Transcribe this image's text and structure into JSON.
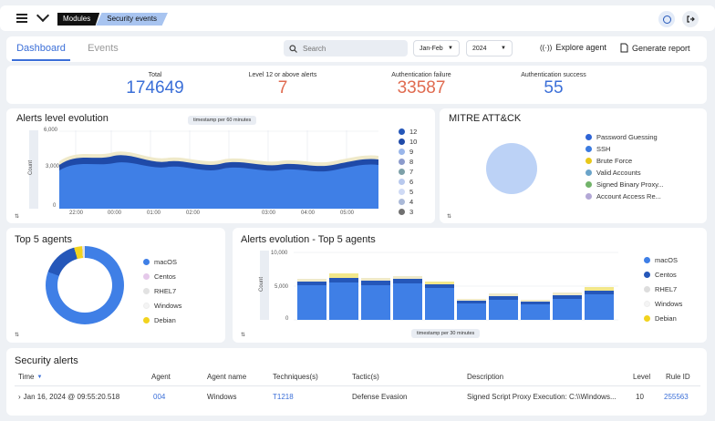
{
  "breadcrumb": {
    "modules": "Modules",
    "current": "Security events"
  },
  "tabs": [
    {
      "label": "Dashboard"
    },
    {
      "label": "Events"
    }
  ],
  "search": {
    "placeholder": "Search"
  },
  "filters": {
    "period": "Jan-Feb",
    "year": "2024"
  },
  "actions": {
    "explore": "Explore agent",
    "report": "Generate report"
  },
  "kpis": [
    {
      "label": "Total",
      "value": "174649",
      "color": "#3b6fd8"
    },
    {
      "label": "Level 12 or above alerts",
      "value": "7",
      "color": "#e06b50"
    },
    {
      "label": "Authentication failure",
      "value": "33587",
      "color": "#e06b50"
    },
    {
      "label": "Authentication success",
      "value": "55",
      "color": "#3b6fd8"
    }
  ],
  "alerts_level": {
    "title": "Alerts level evolution",
    "badge": "timestamp per 60 minutes",
    "ylabel": "Count",
    "yticks": [
      "6,000",
      "3,000",
      "0"
    ],
    "xticks": [
      "22:00",
      "00:00",
      "01:00",
      "02:00",
      "03:00",
      "04:00",
      "05:00"
    ],
    "legend": [
      "12",
      "10",
      "9",
      "8",
      "7",
      "6",
      "5",
      "4",
      "3"
    ],
    "legend_colors": [
      "#2557b9",
      "#1f4aa8",
      "#9ab6ea",
      "#8c9bcc",
      "#7da0a8",
      "#b8c9ee",
      "#cfdaf5",
      "#aab9d8",
      "#707070"
    ]
  },
  "mitre": {
    "title": "MITRE ATT&CK",
    "legend": [
      "Password Guessing",
      "SSH",
      "Brute Force",
      "Valid Accounts",
      "Signed Binary Proxy...",
      "Account Access Re..."
    ],
    "colors": [
      "#2e64d6",
      "#3b7be0",
      "#e8c81b",
      "#6ba4c9",
      "#72b36a",
      "#b3a8d6"
    ]
  },
  "top5": {
    "title": "Top 5 agents",
    "legend": [
      "macOS",
      "Centos",
      "RHEL7",
      "Windows",
      "Debian"
    ],
    "colors": [
      "#3f7fe6",
      "#e5c9ea",
      "#e2e2e2",
      "#f4f4f4",
      "#f2d31e"
    ]
  },
  "evo5": {
    "title": "Alerts evolution - Top 5 agents",
    "badge": "timestamp per 30 minutes",
    "ylabel": "Count",
    "yticks": [
      "10,000",
      "5,000",
      "0"
    ],
    "legend": [
      "macOS",
      "Centos",
      "RHEL7",
      "Windows",
      "Debian"
    ],
    "colors": [
      "#3f7fe6",
      "#2557b9",
      "#dddddd",
      "#f4f4f4",
      "#f2d31e"
    ]
  },
  "security_alerts": {
    "title": "Security alerts",
    "columns": [
      "Time",
      "Agent",
      "Agent name",
      "Techniques(s)",
      "Tactic(s)",
      "Description",
      "Level",
      "Rule ID"
    ],
    "rows": [
      {
        "time": "Jan 16, 2024 @ 09:55:20.518",
        "agent": "004",
        "agent_name": "Windows",
        "technique": "T1218",
        "tactic": "Defense Evasion",
        "description": "Signed Script Proxy Execution: C:\\\\Windows...",
        "level": "10",
        "rule_id": "255563"
      }
    ]
  }
}
